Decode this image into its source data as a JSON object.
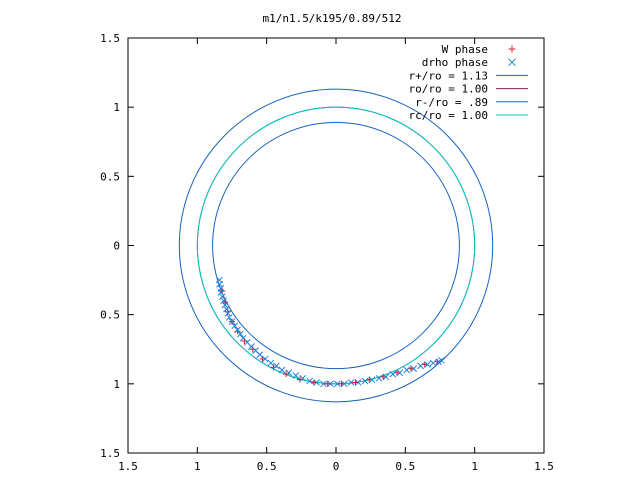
{
  "chart_data": {
    "type": "scatter",
    "title": "m1/n1.5/k195/0.89/512",
    "xlabel": "",
    "ylabel": "",
    "xlim": [
      -1.5,
      1.5
    ],
    "ylim": [
      -1.5,
      1.5
    ],
    "x_ticks": [
      -1.5,
      -1,
      -0.5,
      0,
      0.5,
      1,
      1.5
    ],
    "y_ticks": [
      -1.5,
      -1,
      -0.5,
      0,
      0.5,
      1,
      1.5
    ],
    "x_tick_labels": [
      "1.5",
      "1",
      "0.5",
      "0",
      "0.5",
      "1",
      "1.5"
    ],
    "y_tick_labels": [
      "1.5",
      "1",
      "0.5",
      "0",
      "0.5",
      "1",
      "1.5"
    ],
    "grid": false,
    "legend_position": "top-right",
    "series": [
      {
        "name": "W phase",
        "kind": "points",
        "marker": "plus",
        "color": "#e41a1c",
        "points": [
          [
            -0.82,
            -0.33
          ],
          [
            -0.8,
            -0.41
          ],
          [
            -0.78,
            -0.48
          ],
          [
            -0.75,
            -0.55
          ],
          [
            -0.71,
            -0.62
          ],
          [
            -0.66,
            -0.69
          ],
          [
            -0.6,
            -0.75
          ],
          [
            -0.53,
            -0.82
          ],
          [
            -0.45,
            -0.88
          ],
          [
            -0.36,
            -0.93
          ],
          [
            -0.26,
            -0.97
          ],
          [
            -0.16,
            -0.99
          ],
          [
            -0.06,
            -1.0
          ],
          [
            0.04,
            -1.0
          ],
          [
            0.14,
            -0.99
          ],
          [
            0.24,
            -0.97
          ],
          [
            0.34,
            -0.95
          ],
          [
            0.44,
            -0.92
          ],
          [
            0.54,
            -0.89
          ],
          [
            0.64,
            -0.86
          ],
          [
            0.73,
            -0.84
          ]
        ]
      },
      {
        "name": "drho phase",
        "kind": "points",
        "marker": "cross",
        "color": "#1f7fd6",
        "points": [
          [
            -0.84,
            -0.25
          ],
          [
            -0.84,
            -0.28
          ],
          [
            -0.83,
            -0.31
          ],
          [
            -0.83,
            -0.34
          ],
          [
            -0.82,
            -0.37
          ],
          [
            -0.81,
            -0.4
          ],
          [
            -0.8,
            -0.43
          ],
          [
            -0.79,
            -0.46
          ],
          [
            -0.78,
            -0.49
          ],
          [
            -0.77,
            -0.52
          ],
          [
            -0.75,
            -0.55
          ],
          [
            -0.73,
            -0.58
          ],
          [
            -0.71,
            -0.61
          ],
          [
            -0.69,
            -0.64
          ],
          [
            -0.67,
            -0.67
          ],
          [
            -0.64,
            -0.7
          ],
          [
            -0.61,
            -0.73
          ],
          [
            -0.58,
            -0.76
          ],
          [
            -0.55,
            -0.79
          ],
          [
            -0.51,
            -0.82
          ],
          [
            -0.47,
            -0.85
          ],
          [
            -0.43,
            -0.87
          ],
          [
            -0.39,
            -0.9
          ],
          [
            -0.34,
            -0.92
          ],
          [
            -0.29,
            -0.94
          ],
          [
            -0.24,
            -0.96
          ],
          [
            -0.19,
            -0.98
          ],
          [
            -0.14,
            -0.99
          ],
          [
            -0.09,
            -1.0
          ],
          [
            -0.04,
            -1.0
          ],
          [
            0.01,
            -1.0
          ],
          [
            0.06,
            -1.0
          ],
          [
            0.11,
            -0.99
          ],
          [
            0.16,
            -0.99
          ],
          [
            0.21,
            -0.98
          ],
          [
            0.26,
            -0.97
          ],
          [
            0.31,
            -0.96
          ],
          [
            0.36,
            -0.95
          ],
          [
            0.41,
            -0.93
          ],
          [
            0.46,
            -0.92
          ],
          [
            0.51,
            -0.9
          ],
          [
            0.56,
            -0.89
          ],
          [
            0.61,
            -0.87
          ],
          [
            0.66,
            -0.86
          ],
          [
            0.7,
            -0.85
          ],
          [
            0.74,
            -0.84
          ],
          [
            0.76,
            -0.83
          ]
        ]
      },
      {
        "name": "r+/ro = 1.13",
        "kind": "circle",
        "radius": 1.13,
        "color": "#1565c0"
      },
      {
        "name": "ro/ro = 1.00",
        "kind": "circle",
        "radius": 1.0,
        "color": "#8b1a5a"
      },
      {
        "name": "r-/ro = .89",
        "kind": "circle",
        "radius": 0.89,
        "color": "#1565c0"
      },
      {
        "name": "rc/ro = 1.00",
        "kind": "circle",
        "radius": 1.0,
        "color": "#00cccc"
      }
    ]
  }
}
